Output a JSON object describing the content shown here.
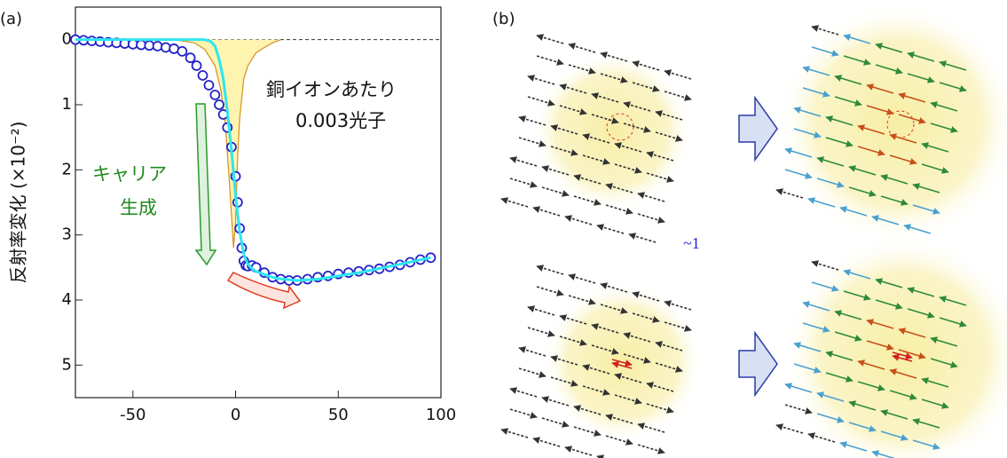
{
  "chart_data": {
    "type": "line",
    "panel_a_label": "(a)",
    "panel_b_label": "(b)",
    "y_label": "反射率変化 (×10⁻²)",
    "annotations": [
      "銅イオンあたり",
      "0.003光子",
      "キャリア",
      "生成",
      "~1"
    ],
    "xlim": [
      -78,
      100
    ],
    "xticks": [
      -50,
      0,
      50,
      100
    ],
    "ylim": [
      -0.5,
      5.5
    ],
    "yticks": [
      0,
      1,
      2,
      3,
      4,
      5
    ],
    "y_inverted": true,
    "reference_line": 0,
    "series": [
      {
        "style": "area",
        "color": "#d4901e",
        "fill": "#fff3b0",
        "x": [
          -30,
          -20,
          -15,
          -10,
          -7,
          -5,
          -3,
          -1,
          0,
          1,
          2,
          4,
          6,
          8,
          10,
          14,
          18,
          22
        ],
        "values": [
          0,
          0.05,
          0.15,
          0.4,
          0.8,
          1.3,
          2.2,
          3.2,
          2.8,
          1.8,
          1.2,
          0.6,
          0.4,
          0.3,
          0.2,
          0.12,
          0.05,
          0
        ]
      },
      {
        "style": "markers",
        "color": "#2323c8",
        "x": [
          -78,
          -74,
          -70,
          -66,
          -62,
          -58,
          -54,
          -50,
          -46,
          -42,
          -38,
          -34,
          -30,
          -26,
          -22,
          -19,
          -16,
          -13,
          -10,
          -8,
          -6,
          -4,
          -2,
          0,
          1,
          2,
          3,
          4,
          5,
          6,
          8,
          10,
          14,
          18,
          22,
          26,
          30,
          35,
          40,
          45,
          50,
          55,
          60,
          65,
          70,
          75,
          80,
          85,
          90,
          95
        ],
        "values": [
          0,
          0.01,
          0.02,
          0.03,
          0.04,
          0.05,
          0.06,
          0.07,
          0.08,
          0.09,
          0.1,
          0.12,
          0.14,
          0.18,
          0.28,
          0.4,
          0.55,
          0.7,
          0.85,
          1.0,
          1.15,
          1.35,
          1.65,
          2.1,
          2.5,
          2.9,
          3.2,
          3.4,
          3.47,
          3.48,
          3.47,
          3.5,
          3.58,
          3.65,
          3.68,
          3.7,
          3.7,
          3.68,
          3.65,
          3.63,
          3.6,
          3.58,
          3.56,
          3.54,
          3.52,
          3.49,
          3.46,
          3.42,
          3.38,
          3.35
        ]
      },
      {
        "style": "line",
        "color": "#2ee6f0",
        "x": [
          -78,
          -15,
          -12,
          -10,
          -8,
          -6,
          -4,
          -2,
          0,
          2,
          4,
          6,
          8,
          10,
          15,
          20,
          30,
          40,
          60,
          80,
          95
        ],
        "values": [
          0,
          0,
          0.03,
          0.1,
          0.3,
          0.6,
          1.1,
          1.7,
          2.4,
          2.95,
          3.3,
          3.45,
          3.52,
          3.56,
          3.62,
          3.67,
          3.7,
          3.68,
          3.58,
          3.45,
          3.35
        ]
      }
    ]
  }
}
